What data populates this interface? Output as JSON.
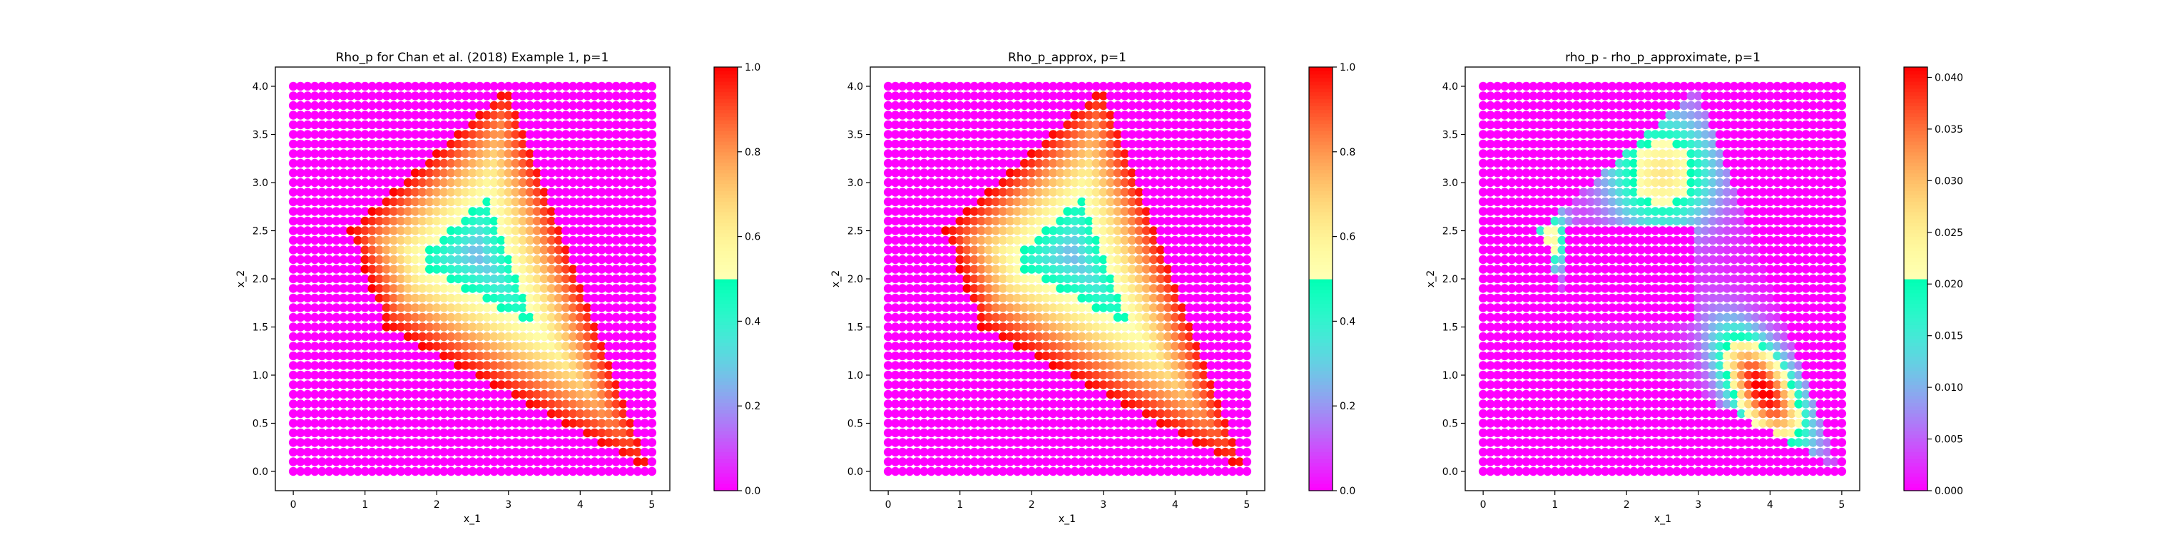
{
  "chart_data": [
    {
      "type": "scatter",
      "title": "Rho_p for Chan et al. (2018) Example 1, p=1",
      "xlabel": "x_1",
      "ylabel": "x_2",
      "xlim": [
        -0.25,
        5.25
      ],
      "ylim": [
        -0.2,
        4.2
      ],
      "xticks": [
        "0",
        "1",
        "2",
        "3",
        "4",
        "5"
      ],
      "yticks": [
        "0.0",
        "0.5",
        "1.0",
        "1.5",
        "2.0",
        "2.5",
        "3.0",
        "3.5",
        "4.0"
      ],
      "grid": {
        "x_range": [
          0,
          5
        ],
        "y_range": [
          0,
          4
        ],
        "nx": 50,
        "ny": 40
      },
      "region_vertices": [
        [
          0.8,
          2.5
        ],
        [
          1.3,
          1.5
        ],
        [
          5.0,
          0.0
        ],
        [
          3.0,
          4.0
        ]
      ],
      "value_outside_region": 0.0,
      "value_at_boundary": 1.0,
      "min_value_inside": 0.25,
      "colormap": "rainbow",
      "colorbar": {
        "min": 0.0,
        "max": 1.0,
        "ticks": [
          "0.0",
          "0.2",
          "0.4",
          "0.6",
          "0.8",
          "1.0"
        ]
      },
      "grid_lines": false
    },
    {
      "type": "scatter",
      "title": "Rho_p_approx, p=1",
      "xlabel": "x_1",
      "ylabel": "x_2",
      "xlim": [
        -0.25,
        5.25
      ],
      "ylim": [
        -0.2,
        4.2
      ],
      "xticks": [
        "0",
        "1",
        "2",
        "3",
        "4",
        "5"
      ],
      "yticks": [
        "0.0",
        "0.5",
        "1.0",
        "1.5",
        "2.0",
        "2.5",
        "3.0",
        "3.5",
        "4.0"
      ],
      "grid": {
        "x_range": [
          0,
          5
        ],
        "y_range": [
          0,
          4
        ],
        "nx": 50,
        "ny": 40
      },
      "region_vertices": [
        [
          0.8,
          2.5
        ],
        [
          1.3,
          1.5
        ],
        [
          5.0,
          0.0
        ],
        [
          3.0,
          4.0
        ]
      ],
      "value_outside_region": 0.0,
      "value_at_boundary": 1.0,
      "min_value_inside": 0.25,
      "colormap": "rainbow",
      "colorbar": {
        "min": 0.0,
        "max": 1.0,
        "ticks": [
          "0.0",
          "0.2",
          "0.4",
          "0.6",
          "0.8",
          "1.0"
        ]
      },
      "grid_lines": false
    },
    {
      "type": "scatter",
      "title": "rho_p - rho_p_approximate, p=1",
      "xlabel": "x_1",
      "ylabel": "x_2",
      "xlim": [
        -0.25,
        5.25
      ],
      "ylim": [
        -0.2,
        4.2
      ],
      "xticks": [
        "0",
        "1",
        "2",
        "3",
        "4",
        "5"
      ],
      "yticks": [
        "0.0",
        "0.5",
        "1.0",
        "1.5",
        "2.0",
        "2.5",
        "3.0",
        "3.5",
        "4.0"
      ],
      "grid": {
        "x_range": [
          0,
          5
        ],
        "y_range": [
          0,
          4
        ],
        "nx": 50,
        "ny": 40
      },
      "region_vertices": [
        [
          0.8,
          2.5
        ],
        [
          1.3,
          1.5
        ],
        [
          5.0,
          0.0
        ],
        [
          3.0,
          4.0
        ]
      ],
      "error_hotspots": [
        {
          "x": 3.9,
          "y": 0.85,
          "peak": 0.041
        },
        {
          "x": 2.5,
          "y": 3.1,
          "peak": 0.025
        },
        {
          "x": 0.95,
          "y": 2.4,
          "peak": 0.022
        }
      ],
      "blank_band": {
        "x": [
          1.1,
          3.0
        ],
        "y": [
          1.5,
          2.6
        ]
      },
      "colormap": "rainbow",
      "colorbar": {
        "min": 0.0,
        "max": 0.041,
        "ticks": [
          "0.000",
          "0.005",
          "0.010",
          "0.015",
          "0.020",
          "0.025",
          "0.030",
          "0.035",
          "0.040"
        ]
      },
      "grid_lines": false
    }
  ]
}
